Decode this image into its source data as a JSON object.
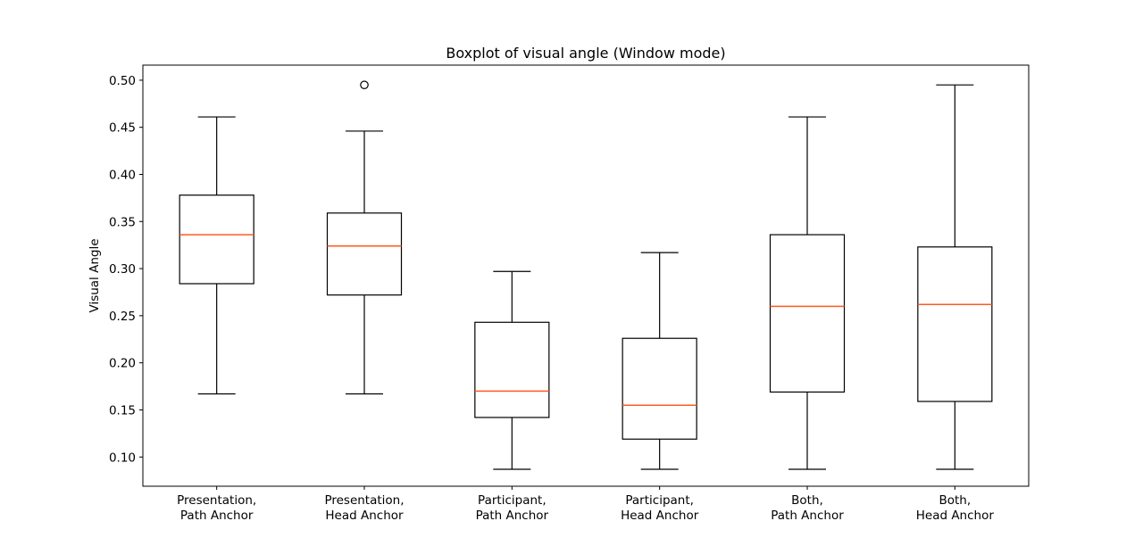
{
  "chart_data": {
    "type": "boxplot",
    "title": "Boxplot of visual angle (Window mode)",
    "xlabel": "",
    "ylabel": "Visual Angle",
    "ylim": [
      0.069,
      0.516
    ],
    "yticks": [
      0.1,
      0.15,
      0.2,
      0.25,
      0.3,
      0.35,
      0.4,
      0.45,
      0.5
    ],
    "ytick_labels": [
      "0.10",
      "0.15",
      "0.20",
      "0.25",
      "0.30",
      "0.35",
      "0.40",
      "0.45",
      "0.50"
    ],
    "grid": false,
    "colors": {
      "box": "#000000",
      "median": "#ff5a1f",
      "outlier": "#000000"
    },
    "categories": [
      [
        "Presentation,",
        "Path Anchor"
      ],
      [
        "Presentation,",
        "Head Anchor"
      ],
      [
        "Participant,",
        "Path Anchor"
      ],
      [
        "Participant,",
        "Head Anchor"
      ],
      [
        "Both,",
        "Path Anchor"
      ],
      [
        "Both,",
        "Head Anchor"
      ]
    ],
    "boxes": [
      {
        "whislo": 0.167,
        "q1": 0.284,
        "med": 0.336,
        "q3": 0.378,
        "whishi": 0.461,
        "fliers": []
      },
      {
        "whislo": 0.167,
        "q1": 0.272,
        "med": 0.324,
        "q3": 0.359,
        "whishi": 0.446,
        "fliers": [
          0.495
        ]
      },
      {
        "whislo": 0.087,
        "q1": 0.142,
        "med": 0.17,
        "q3": 0.243,
        "whishi": 0.297,
        "fliers": []
      },
      {
        "whislo": 0.087,
        "q1": 0.119,
        "med": 0.155,
        "q3": 0.226,
        "whishi": 0.317,
        "fliers": []
      },
      {
        "whislo": 0.087,
        "q1": 0.169,
        "med": 0.26,
        "q3": 0.336,
        "whishi": 0.461,
        "fliers": []
      },
      {
        "whislo": 0.087,
        "q1": 0.159,
        "med": 0.262,
        "q3": 0.323,
        "whishi": 0.495,
        "fliers": []
      }
    ]
  }
}
